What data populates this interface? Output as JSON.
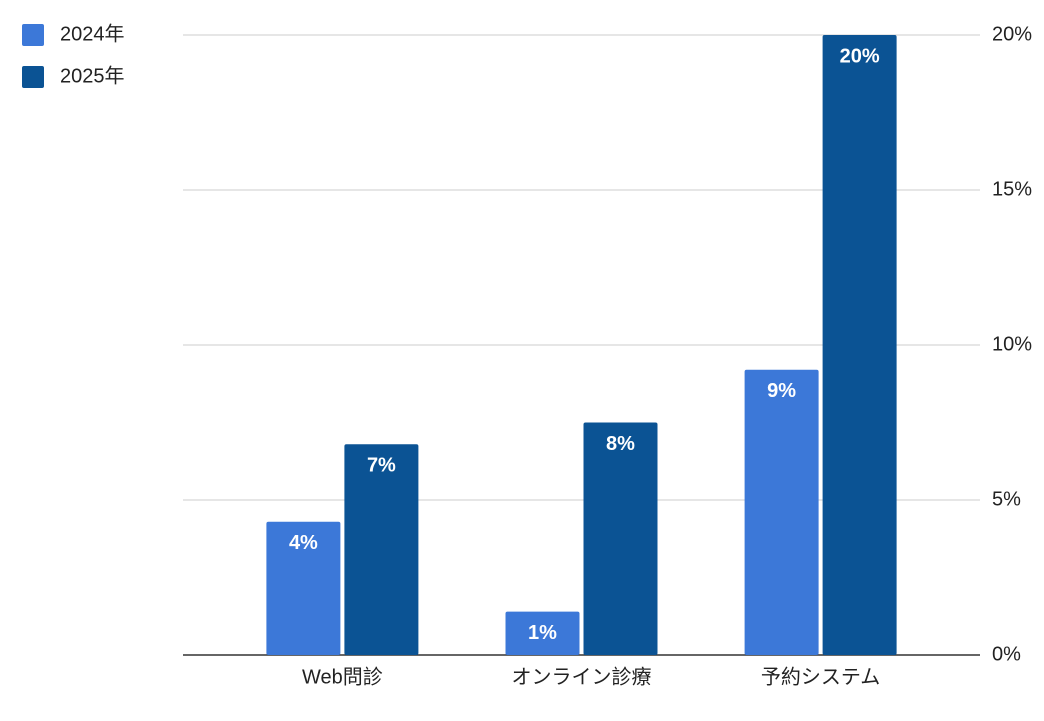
{
  "chart_data": {
    "type": "bar",
    "categories": [
      "Web問診",
      "オンライン診療",
      "予約システム"
    ],
    "series": [
      {
        "name": "2024年",
        "color": "#3c78d8",
        "values": [
          4.3,
          1.4,
          9.2
        ],
        "value_labels": [
          "4%",
          "1%",
          "9%"
        ]
      },
      {
        "name": "2025年",
        "color": "#0b5394",
        "values": [
          6.8,
          7.5,
          20
        ],
        "value_labels": [
          "7%",
          "8%",
          "20%"
        ]
      }
    ],
    "ylim": [
      0,
      20
    ],
    "yticks": [
      {
        "value": 0,
        "label": "0%"
      },
      {
        "value": 5,
        "label": "5%"
      },
      {
        "value": 10,
        "label": "10%"
      },
      {
        "value": 15,
        "label": "15%"
      },
      {
        "value": 20,
        "label": "20%"
      }
    ],
    "y_axis_side": "right",
    "grid": true,
    "legend": "top-left"
  }
}
